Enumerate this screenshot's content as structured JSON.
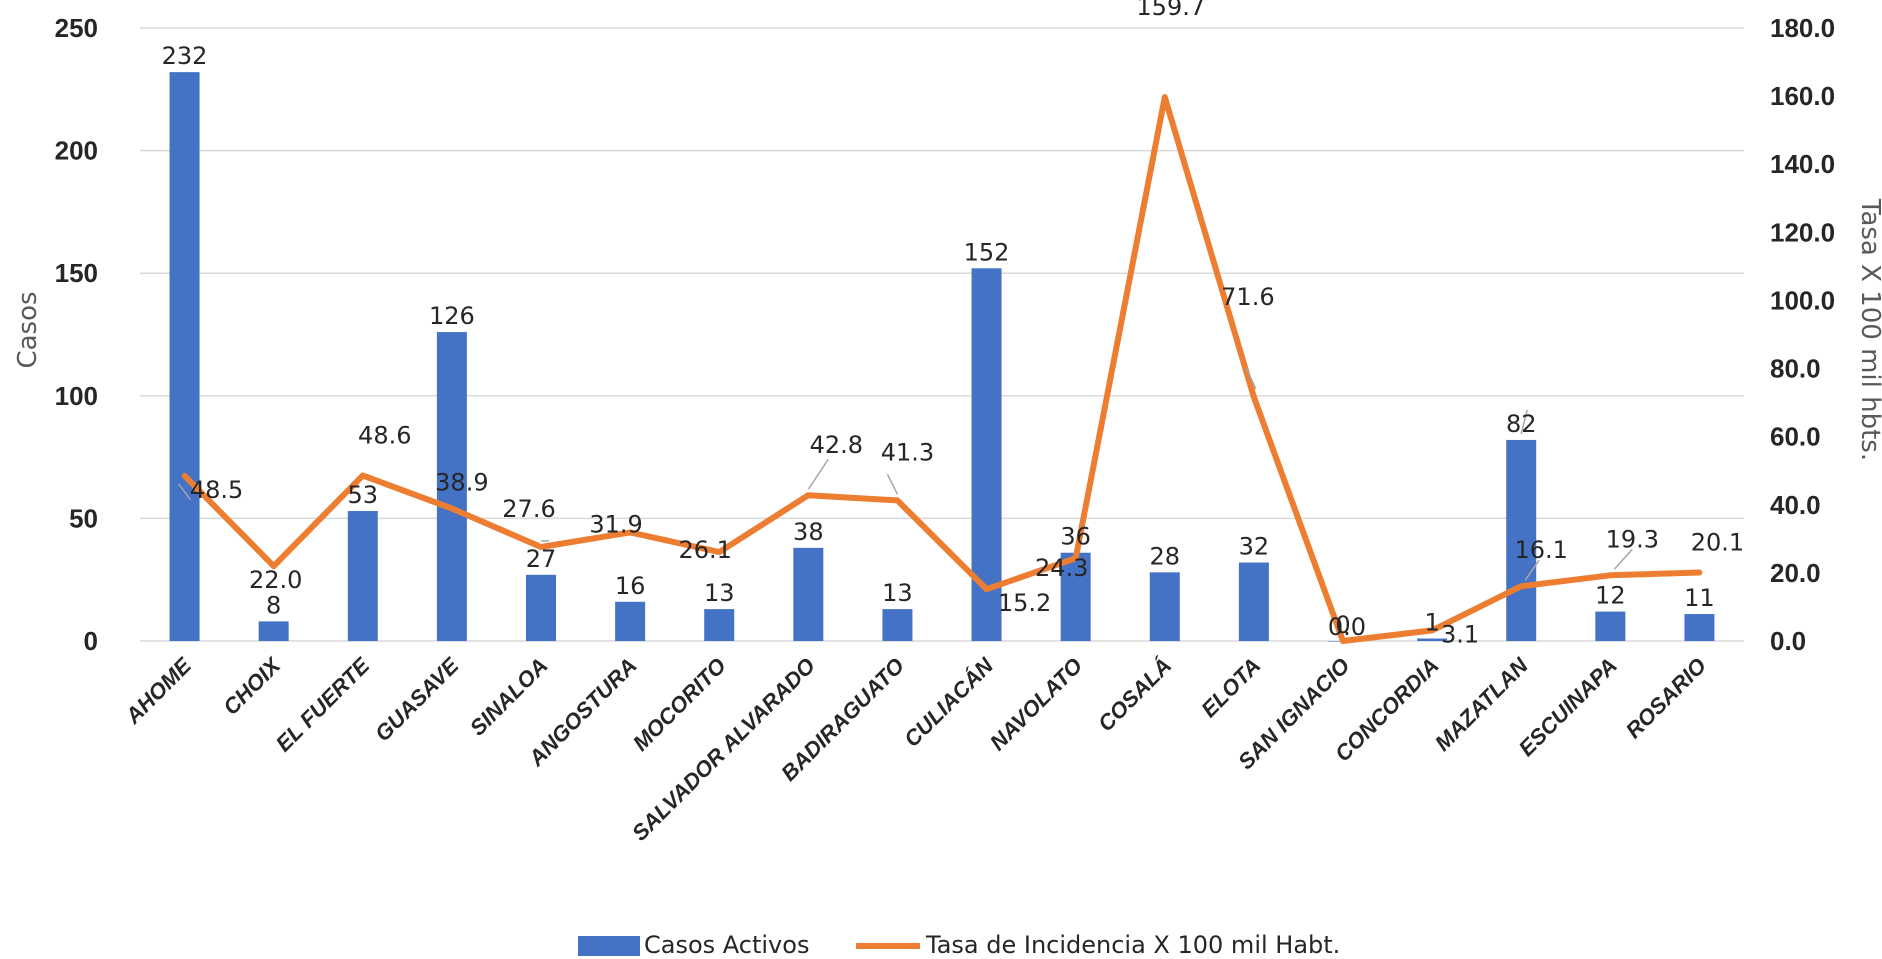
{
  "chart_data": {
    "type": "bar",
    "categories": [
      "AHOME",
      "CHOIX",
      "EL FUERTE",
      "GUASAVE",
      "SINALOA",
      "ANGOSTURA",
      "MOCORITO",
      "SALVADOR ALVARADO",
      "BADIRAGUATO",
      "CULIACÁN",
      "NAVOLATO",
      "COSALÁ",
      "ELOTA",
      "SAN IGNACIO",
      "CONCORDIA",
      "MAZATLAN",
      "ESCUINAPA",
      "ROSARIO"
    ],
    "series": [
      {
        "name": "Casos Activos",
        "type": "bar",
        "axis": "left",
        "color": "#4472C4",
        "values": [
          232,
          8,
          53,
          126,
          27,
          16,
          13,
          38,
          13,
          152,
          36,
          28,
          32,
          0,
          1,
          82,
          12,
          11
        ],
        "labels": [
          "232",
          "8",
          "53",
          "126",
          "27",
          "16",
          "13",
          "38",
          "13",
          "152",
          "36",
          "28",
          "32",
          "0",
          "1",
          "82",
          "12",
          "11"
        ]
      },
      {
        "name": "Tasa de Incidencia X 100 mil Habt.",
        "type": "line",
        "axis": "right",
        "color": "#ED7D31",
        "values": [
          48.5,
          22.0,
          48.6,
          38.9,
          27.6,
          31.9,
          26.1,
          42.8,
          41.3,
          15.2,
          24.3,
          159.7,
          71.6,
          0.0,
          3.1,
          16.1,
          19.3,
          20.1
        ],
        "labels": [
          "48.5",
          "22.0",
          "48.6",
          "38.9",
          "27.6",
          "31.9",
          "26.1",
          "42.8",
          "41.3",
          "15.2",
          "24.3",
          "159.7",
          "71.6",
          "0.0",
          "3.1",
          "16.1",
          "19.3",
          "20.1"
        ]
      }
    ],
    "ylabel": "Casos",
    "y2label": "Tasa X 100 mil hbts.",
    "ylim": [
      0,
      250
    ],
    "y2lim": [
      0,
      180
    ],
    "yticks": [
      "0",
      "50",
      "100",
      "150",
      "200",
      "250"
    ],
    "y2ticks": [
      "0.0",
      "20.0",
      "40.0",
      "60.0",
      "80.0",
      "100.0",
      "120.0",
      "140.0",
      "160.0",
      "180.0"
    ],
    "grid": true,
    "legend_position": "bottom"
  }
}
